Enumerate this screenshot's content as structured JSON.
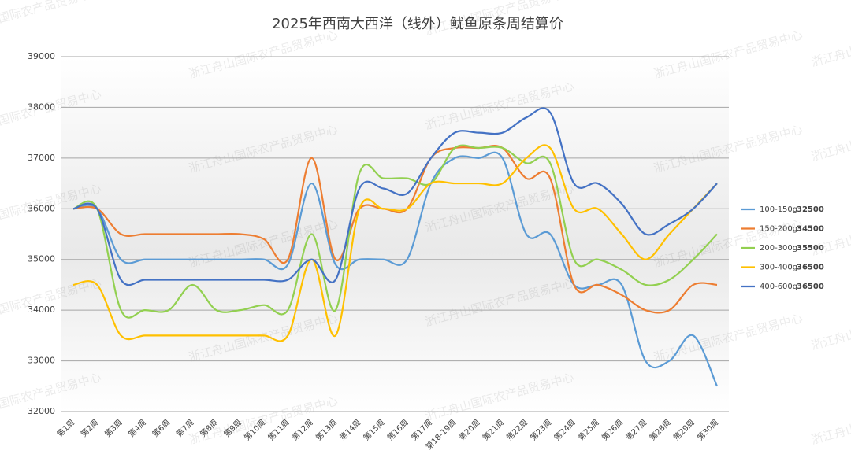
{
  "chart_data": {
    "type": "line",
    "title": "2025年西南大西洋（线外）鱿鱼原条周结算价",
    "watermark": "浙江舟山国际农产品贸易中心",
    "categories": [
      "第1周",
      "第2周",
      "第3周",
      "第4周",
      "第6周",
      "第7周",
      "第8周",
      "第9周",
      "第10周",
      "第11周",
      "第12周",
      "第13周",
      "第14周",
      "第15周",
      "第16周",
      "第17周",
      "第18-19周",
      "第20周",
      "第21周",
      "第22周",
      "第23周",
      "第24周",
      "第25周",
      "第26周",
      "第27周",
      "第28周",
      "第29周",
      "第30周"
    ],
    "ylim": [
      32000,
      39000
    ],
    "yticks": [
      32000,
      33000,
      34000,
      35000,
      36000,
      37000,
      38000,
      39000
    ],
    "grid": true,
    "legend": "right",
    "series": [
      {
        "name": "100-150g",
        "color": "#5b9bd5",
        "values": [
          36000,
          36000,
          35000,
          35000,
          35000,
          35000,
          35000,
          35000,
          35000,
          34900,
          36500,
          34900,
          35000,
          35000,
          35000,
          36500,
          37000,
          37000,
          37000,
          35500,
          35500,
          34500,
          34500,
          34500,
          33000,
          33000,
          33500,
          32500
        ]
      },
      {
        "name": "150-200g",
        "color": "#ed7d31",
        "values": [
          36000,
          36000,
          35500,
          35500,
          35500,
          35500,
          35500,
          35500,
          35400,
          35000,
          37000,
          35000,
          36000,
          36000,
          36000,
          37000,
          37200,
          37200,
          37200,
          36600,
          36600,
          34500,
          34500,
          34300,
          34000,
          34000,
          34500,
          34500
        ]
      },
      {
        "name": "200-300g",
        "color": "#92d050",
        "values": [
          36000,
          36000,
          34000,
          34000,
          34000,
          34500,
          34000,
          34000,
          34100,
          34000,
          35500,
          34000,
          36700,
          36600,
          36600,
          36500,
          37200,
          37200,
          37200,
          36900,
          36900,
          35000,
          35000,
          34800,
          34500,
          34600,
          35000,
          35500
        ]
      },
      {
        "name": "300-400g",
        "color": "#ffc000",
        "values": [
          34500,
          34500,
          33500,
          33500,
          33500,
          33500,
          33500,
          33500,
          33500,
          33500,
          35000,
          33500,
          36000,
          36000,
          36000,
          36500,
          36500,
          36500,
          36500,
          37000,
          37200,
          36000,
          36000,
          35500,
          35000,
          35500,
          36000,
          36500
        ]
      },
      {
        "name": "400-600g",
        "color": "#4472c4",
        "values": [
          36000,
          36000,
          34600,
          34600,
          34600,
          34600,
          34600,
          34600,
          34600,
          34600,
          35000,
          34600,
          36400,
          36400,
          36300,
          37000,
          37500,
          37500,
          37500,
          37800,
          37900,
          36500,
          36500,
          36100,
          35500,
          35700,
          36000,
          36500
        ]
      }
    ]
  }
}
